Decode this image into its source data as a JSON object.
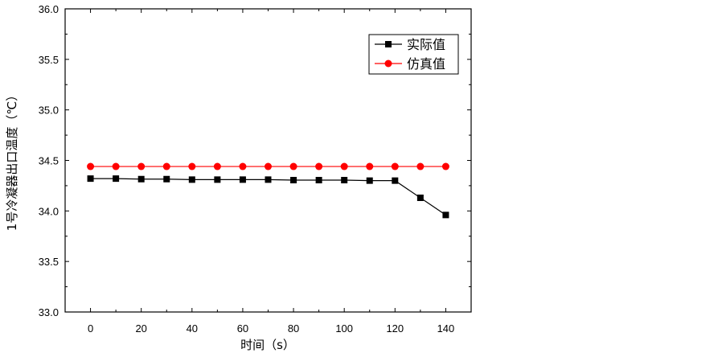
{
  "chart_data": {
    "type": "line",
    "xlabel": "时间（s）",
    "ylabel": "1号冷凝器出口温度（℃）",
    "xlim": [
      -10,
      150
    ],
    "ylim": [
      33.0,
      36.0
    ],
    "xticks": [
      0,
      20,
      40,
      60,
      80,
      100,
      120,
      140
    ],
    "xtick_labels": [
      "0",
      "20",
      "40",
      "60",
      "80",
      "100",
      "120",
      "140"
    ],
    "yticks": [
      33.0,
      33.5,
      34.0,
      34.5,
      35.0,
      35.5,
      36.0
    ],
    "ytick_labels": [
      "33.0",
      "33.5",
      "34.0",
      "34.5",
      "35.0",
      "35.5",
      "36.0"
    ],
    "grid": false,
    "legend_position": "top-right",
    "x": [
      0,
      10,
      20,
      30,
      40,
      50,
      60,
      70,
      80,
      90,
      100,
      110,
      120,
      130,
      140
    ],
    "series": [
      {
        "name": "实际值",
        "color": "#000000",
        "marker": "square",
        "values": [
          34.32,
          34.32,
          34.315,
          34.315,
          34.31,
          34.31,
          34.31,
          34.31,
          34.305,
          34.305,
          34.305,
          34.3,
          34.3,
          34.13,
          33.96
        ]
      },
      {
        "name": "仿真值",
        "color": "#ff0000",
        "marker": "circle",
        "values": [
          34.44,
          34.44,
          34.44,
          34.44,
          34.44,
          34.44,
          34.44,
          34.44,
          34.44,
          34.44,
          34.44,
          34.44,
          34.44,
          34.44,
          34.44
        ]
      }
    ]
  }
}
